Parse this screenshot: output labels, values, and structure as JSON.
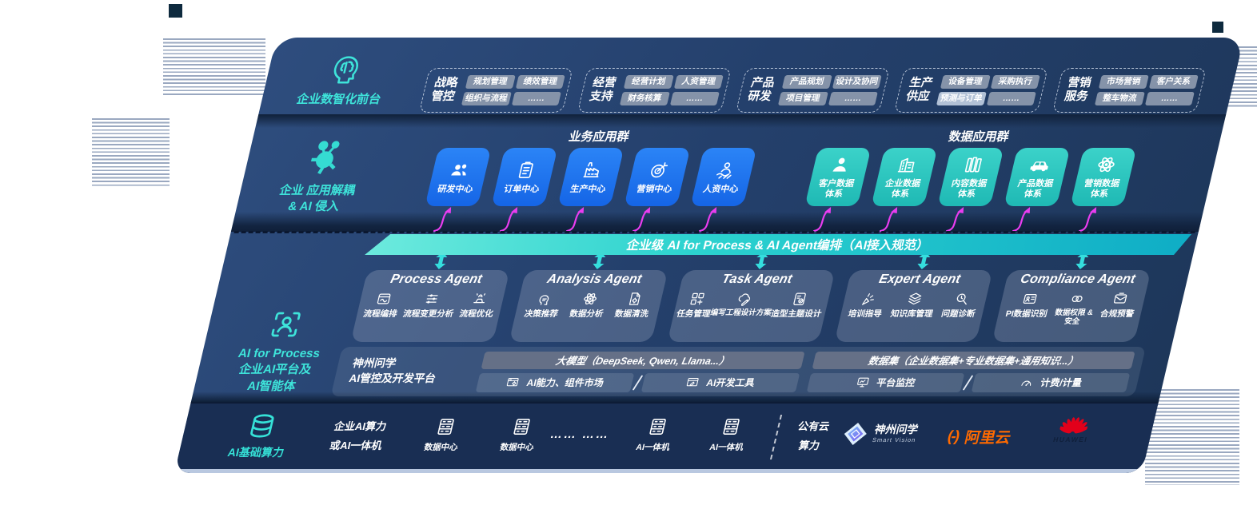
{
  "colors": {
    "panel_navy": "#24406c",
    "accent_cyan": "#3ee4da",
    "tile_blue": "#1e78f0",
    "tile_teal": "#2cc6bf",
    "banner_teal": "#2cd2cf",
    "magenta_arrow": "#ea3df0",
    "ali_orange": "#ff6a00",
    "huawei_red": "#e2001a"
  },
  "panel": {
    "layer1": {
      "label": "企业数智化前台",
      "groups": [
        {
          "title": "战略管控",
          "tags": [
            {
              "label": "规划管理"
            },
            {
              "label": "绩效管理"
            },
            {
              "label": "组织与流程"
            },
            {
              "label": "……"
            }
          ]
        },
        {
          "title": "经营支持",
          "tags": [
            {
              "label": "经营计划"
            },
            {
              "label": "人资管理"
            },
            {
              "label": "财务核算"
            },
            {
              "label": "……"
            }
          ]
        },
        {
          "title": "产品研发",
          "tags": [
            {
              "label": "产品规划"
            },
            {
              "label": "设计及协同"
            },
            {
              "label": "项目管理"
            },
            {
              "label": "……"
            }
          ]
        },
        {
          "title": "生产供应",
          "tags": [
            {
              "label": "设备管理"
            },
            {
              "label": "采购执行"
            },
            {
              "label": "预测与订单",
              "highlight": true
            },
            {
              "label": "……"
            }
          ]
        },
        {
          "title": "营销服务",
          "tags": [
            {
              "label": "市场营销"
            },
            {
              "label": "客户关系"
            },
            {
              "label": "整车物流"
            },
            {
              "label": "……"
            }
          ]
        }
      ]
    },
    "layer2": {
      "label_lines": [
        "企业 应用解耦",
        "& AI 侵入"
      ],
      "business_group": {
        "title": "业务应用群",
        "tiles": [
          {
            "lines": [
              "研发中心"
            ],
            "icon": "team"
          },
          {
            "lines": [
              "订单中心"
            ],
            "icon": "clipboard"
          },
          {
            "lines": [
              "生产中心"
            ],
            "icon": "factory"
          },
          {
            "lines": [
              "营销中心"
            ],
            "icon": "target"
          },
          {
            "lines": [
              "人资中心"
            ],
            "icon": "person-wave"
          }
        ]
      },
      "data_group": {
        "title": "数据应用群",
        "tiles": [
          {
            "lines": [
              "客户数据",
              "体系"
            ],
            "icon": "person"
          },
          {
            "lines": [
              "企业数据",
              "体系"
            ],
            "icon": "building"
          },
          {
            "lines": [
              "内容数据",
              "体系"
            ],
            "icon": "books"
          },
          {
            "lines": [
              "产品数据",
              "体系"
            ],
            "icon": "car"
          },
          {
            "lines": [
              "营销数据",
              "体系"
            ],
            "icon": "atom"
          }
        ]
      }
    },
    "banner": {
      "text": "企业级 AI for Process & AI Agent编排（AI接入规范）"
    },
    "layer3": {
      "label_lines": [
        "AI for Process",
        "企业AI平台及",
        "AI智能体"
      ],
      "agents": [
        {
          "title": "Process Agent",
          "items": [
            {
              "label": "流程编排",
              "icon": "winwave"
            },
            {
              "label": "流程变更分析",
              "icon": "sliders"
            },
            {
              "label": "流程优化",
              "icon": "sparkle"
            }
          ]
        },
        {
          "title": "Analysis Agent",
          "items": [
            {
              "label": "决策推荐",
              "icon": "headchip"
            },
            {
              "label": "数据分析",
              "icon": "atom"
            },
            {
              "label": "数据清洗",
              "icon": "docgear"
            }
          ]
        },
        {
          "title": "Task Agent",
          "items": [
            {
              "label": "任务管理",
              "icon": "grid"
            },
            {
              "label": "编写工程设计方案",
              "icon": "cloudpen"
            },
            {
              "label": "造型主题设计",
              "icon": "cardcheck"
            }
          ]
        },
        {
          "title": "Expert Agent",
          "items": [
            {
              "label": "培训指导",
              "icon": "pointer"
            },
            {
              "label": "知识库管理",
              "icon": "layers"
            },
            {
              "label": "问题诊断",
              "icon": "gearsearch"
            }
          ]
        },
        {
          "title": "Compliance Agent",
          "items": [
            {
              "label": "PI数据识别",
              "icon": "idcard"
            },
            {
              "label": "数据权限 &\n安全",
              "icon": "links"
            },
            {
              "label": "合规预警",
              "icon": "mailwarn"
            }
          ]
        }
      ]
    },
    "platform": {
      "label_lines": [
        "神州问学",
        "AI管控及开发平台"
      ],
      "model_bar": "大模型（DeepSeek, Qwen, Llama...）",
      "dataset_bar": "数据集（企业数据集+专业数据集+通用知识...）",
      "left_cells": [
        {
          "label": "AI能力、组件市场",
          "icon": "wingear"
        },
        {
          "label": "AI开发工具",
          "icon": "winpen"
        }
      ],
      "right_cells": [
        {
          "label": "平台监控",
          "icon": "moncht"
        },
        {
          "label": "计费/计量",
          "icon": "gauge"
        }
      ]
    },
    "bottom": {
      "label": "AI基础算力",
      "compute_lines": [
        "企业AI算力",
        "或AI一体机"
      ],
      "servers": [
        {
          "label": "数据中心",
          "icon": "server"
        },
        {
          "label": "数据中心",
          "icon": "server"
        },
        {
          "dots": "…… ……"
        },
        {
          "label": "AI一体机",
          "icon": "server"
        },
        {
          "label": "AI一体机",
          "icon": "server"
        }
      ],
      "cloud_lines": [
        "公有云",
        "算力"
      ],
      "logos": [
        {
          "name": "神州问学",
          "sub": "Smart Vision"
        },
        {
          "name": "阿里云",
          "mark": "(-)"
        },
        {
          "name": "HUAWEI"
        }
      ]
    }
  }
}
